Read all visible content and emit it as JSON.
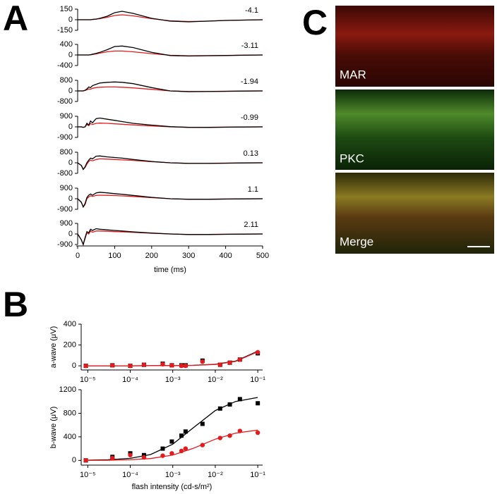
{
  "panel_labels": [
    "A",
    "B",
    "C"
  ],
  "images": {
    "labels": [
      "MAR",
      "PKC",
      "Merge"
    ]
  },
  "chart_data": [
    {
      "type": "line",
      "annotation": "-4.1",
      "xlim": [
        0,
        500
      ],
      "ylim": [
        -150,
        150
      ],
      "yticks": [
        -150,
        0,
        150
      ],
      "x": [
        0,
        10,
        15,
        20,
        25,
        30,
        35,
        40,
        50,
        60,
        80,
        100,
        120,
        150,
        200,
        250,
        300,
        350,
        400,
        450,
        500
      ],
      "series": [
        {
          "color": "#000000",
          "values": [
            0,
            0,
            0,
            0,
            0,
            0,
            0,
            5,
            10,
            20,
            50,
            100,
            120,
            90,
            20,
            -20,
            -30,
            -20,
            -10,
            -5,
            0
          ]
        },
        {
          "color": "#e41a1c",
          "values": [
            0,
            0,
            0,
            0,
            0,
            0,
            0,
            3,
            8,
            15,
            35,
            60,
            70,
            55,
            15,
            -15,
            -25,
            -20,
            -10,
            -5,
            0
          ]
        }
      ]
    },
    {
      "type": "line",
      "annotation": "-3.11",
      "xlim": [
        0,
        500
      ],
      "ylim": [
        -400,
        400
      ],
      "yticks": [
        -400,
        0,
        400
      ],
      "x": [
        0,
        10,
        15,
        20,
        25,
        30,
        35,
        40,
        50,
        60,
        80,
        100,
        120,
        150,
        200,
        250,
        300,
        350,
        400,
        450,
        500
      ],
      "series": [
        {
          "color": "#000000",
          "values": [
            0,
            0,
            0,
            0,
            0,
            0,
            10,
            30,
            60,
            100,
            200,
            320,
            340,
            280,
            100,
            -20,
            -40,
            -30,
            -20,
            -10,
            0
          ]
        },
        {
          "color": "#e41a1c",
          "values": [
            0,
            0,
            0,
            0,
            0,
            0,
            5,
            20,
            40,
            70,
            120,
            150,
            150,
            120,
            50,
            -10,
            -30,
            -25,
            -15,
            -5,
            0
          ]
        }
      ]
    },
    {
      "type": "line",
      "annotation": "-1.94",
      "xlim": [
        0,
        500
      ],
      "ylim": [
        -800,
        800
      ],
      "yticks": [
        -800,
        0,
        800
      ],
      "x": [
        0,
        10,
        15,
        20,
        25,
        30,
        35,
        40,
        50,
        60,
        80,
        100,
        120,
        150,
        200,
        250,
        300,
        350,
        400,
        450,
        500
      ],
      "series": [
        {
          "color": "#000000",
          "values": [
            0,
            0,
            0,
            50,
            150,
            300,
            250,
            400,
            500,
            600,
            650,
            680,
            650,
            550,
            250,
            0,
            -60,
            -50,
            -30,
            -10,
            0
          ]
        },
        {
          "color": "#e41a1c",
          "values": [
            0,
            0,
            0,
            30,
            80,
            150,
            130,
            200,
            250,
            280,
            300,
            300,
            280,
            230,
            120,
            0,
            -40,
            -40,
            -20,
            -10,
            0
          ]
        }
      ]
    },
    {
      "type": "line",
      "annotation": "-0.99",
      "xlim": [
        0,
        500
      ],
      "ylim": [
        -900,
        900
      ],
      "yticks": [
        -900,
        0,
        900
      ],
      "x": [
        0,
        10,
        15,
        20,
        25,
        30,
        35,
        40,
        50,
        60,
        80,
        100,
        120,
        150,
        200,
        250,
        300,
        350,
        400,
        450,
        500
      ],
      "series": [
        {
          "color": "#000000",
          "values": [
            0,
            0,
            -50,
            0,
            300,
            150,
            500,
            350,
            700,
            750,
            650,
            550,
            450,
            300,
            150,
            20,
            -40,
            -50,
            -30,
            -10,
            0
          ]
        },
        {
          "color": "#e41a1c",
          "values": [
            0,
            0,
            -30,
            0,
            200,
            100,
            280,
            200,
            300,
            320,
            300,
            260,
            220,
            160,
            80,
            0,
            -40,
            -40,
            -20,
            -10,
            0
          ]
        }
      ]
    },
    {
      "type": "line",
      "annotation": "0.13",
      "xlim": [
        0,
        500
      ],
      "ylim": [
        -800,
        800
      ],
      "yticks": [
        -800,
        0,
        800
      ],
      "x": [
        0,
        10,
        15,
        20,
        25,
        30,
        35,
        40,
        50,
        60,
        80,
        100,
        120,
        150,
        200,
        250,
        300,
        350,
        400,
        450,
        500
      ],
      "series": [
        {
          "color": "#000000",
          "values": [
            0,
            -200,
            -500,
            -300,
            0,
            200,
            350,
            300,
            500,
            520,
            450,
            400,
            350,
            250,
            100,
            0,
            -50,
            -50,
            -30,
            -10,
            0
          ]
        },
        {
          "color": "#e41a1c",
          "values": [
            0,
            -200,
            -500,
            -350,
            -100,
            100,
            200,
            150,
            250,
            300,
            280,
            250,
            220,
            180,
            80,
            0,
            -40,
            -40,
            -20,
            -10,
            0
          ]
        }
      ]
    },
    {
      "type": "line",
      "annotation": "1.1",
      "xlim": [
        0,
        500
      ],
      "ylim": [
        -900,
        900
      ],
      "yticks": [
        -900,
        0,
        900
      ],
      "x": [
        0,
        10,
        15,
        20,
        25,
        30,
        35,
        40,
        50,
        60,
        80,
        100,
        120,
        150,
        200,
        250,
        300,
        350,
        400,
        450,
        500
      ],
      "series": [
        {
          "color": "#000000",
          "values": [
            0,
            -300,
            -700,
            -400,
            100,
            300,
            400,
            300,
            500,
            550,
            500,
            430,
            380,
            280,
            120,
            0,
            -50,
            -50,
            -30,
            -10,
            0
          ]
        },
        {
          "color": "#e41a1c",
          "values": [
            0,
            -300,
            -700,
            -500,
            0,
            150,
            250,
            200,
            280,
            300,
            290,
            270,
            240,
            190,
            90,
            0,
            -40,
            -40,
            -20,
            -10,
            0
          ]
        }
      ]
    },
    {
      "type": "line",
      "annotation": "2.11",
      "xlim": [
        0,
        500
      ],
      "ylim": [
        -900,
        900
      ],
      "yticks": [
        -900,
        0,
        900
      ],
      "xticks": [
        0,
        100,
        200,
        300,
        400,
        500
      ],
      "xlabel": "time (ms)",
      "x": [
        0,
        10,
        15,
        20,
        25,
        30,
        35,
        40,
        50,
        60,
        80,
        100,
        120,
        150,
        200,
        250,
        300,
        350,
        400,
        450,
        500
      ],
      "series": [
        {
          "color": "#000000",
          "values": [
            0,
            -500,
            -900,
            -300,
            200,
            100,
            400,
            300,
            450,
            400,
            350,
            300,
            250,
            180,
            80,
            0,
            -50,
            -50,
            -30,
            -10,
            0
          ]
        },
        {
          "color": "#e41a1c",
          "values": [
            0,
            -500,
            -900,
            -400,
            100,
            0,
            250,
            150,
            250,
            250,
            230,
            200,
            180,
            140,
            60,
            0,
            -40,
            -40,
            -20,
            -10,
            0
          ]
        }
      ]
    },
    {
      "type": "scatter",
      "ylabel": "a-wave (μV)",
      "xlog": true,
      "xlim": [
        7e-06,
        0.13
      ],
      "ylim": [
        -40,
        400
      ],
      "yticks": [
        0,
        200,
        400
      ],
      "xticks": [
        {
          "value": 1e-05,
          "label": "10⁻⁵"
        },
        {
          "value": 0.0001,
          "label": "10⁻⁴"
        },
        {
          "value": 0.001,
          "label": "10⁻³"
        },
        {
          "value": 0.01,
          "label": "10⁻²"
        },
        {
          "value": 0.1,
          "label": "10⁻¹"
        }
      ],
      "series": [
        {
          "color": "#000000",
          "marker": "square",
          "x": [
            9e-06,
            3.8e-05,
            0.0001,
            0.00021,
            0.00058,
            0.00095,
            0.0016,
            0.002,
            0.005,
            0.013,
            0.022,
            0.038,
            0.1
          ],
          "values": [
            0,
            5,
            0,
            10,
            20,
            5,
            5,
            5,
            50,
            10,
            30,
            60,
            120
          ]
        },
        {
          "color": "#e41a1c",
          "marker": "circle",
          "x": [
            9e-06,
            3.8e-05,
            0.0001,
            0.00021,
            0.00058,
            0.00095,
            0.0016,
            0.002,
            0.005,
            0.013,
            0.022,
            0.038,
            0.1
          ],
          "values": [
            0,
            5,
            0,
            10,
            15,
            5,
            0,
            0,
            40,
            10,
            30,
            60,
            130
          ]
        }
      ],
      "fits": [
        {
          "color": "#000000",
          "x": [
            8e-06,
            1e-05,
            3e-05,
            0.0001,
            0.0003,
            0.001,
            0.003,
            0.01,
            0.03,
            0.1
          ],
          "values": [
            0,
            0,
            0,
            0,
            1,
            2,
            5,
            15,
            45,
            140
          ]
        },
        {
          "color": "#e41a1c",
          "x": [
            8e-06,
            1e-05,
            3e-05,
            0.0001,
            0.0003,
            0.001,
            0.003,
            0.01,
            0.03,
            0.1
          ],
          "values": [
            0,
            0,
            0,
            0,
            1,
            2,
            4,
            13,
            42,
            135
          ]
        }
      ]
    },
    {
      "type": "scatter",
      "ylabel": "b-wave (μV)",
      "xlabel": "flash intensity (cd-s/m²)",
      "xlog": true,
      "xlim": [
        7e-06,
        0.13
      ],
      "ylim": [
        -80,
        1200
      ],
      "yticks": [
        0,
        400,
        800,
        1200
      ],
      "xticks": [
        {
          "value": 1e-05,
          "label": "10⁻⁵"
        },
        {
          "value": 0.0001,
          "label": "10⁻⁴"
        },
        {
          "value": 0.001,
          "label": "10⁻³"
        },
        {
          "value": 0.01,
          "label": "10⁻²"
        },
        {
          "value": 0.1,
          "label": "10⁻¹"
        }
      ],
      "series": [
        {
          "color": "#000000",
          "marker": "square",
          "x": [
            9e-06,
            3.8e-05,
            0.0001,
            0.00021,
            0.00058,
            0.00095,
            0.0016,
            0.002,
            0.005,
            0.013,
            0.022,
            0.038,
            0.1
          ],
          "values": [
            0,
            60,
            120,
            90,
            200,
            320,
            420,
            490,
            620,
            880,
            950,
            1040,
            970
          ]
        },
        {
          "color": "#e41a1c",
          "marker": "circle",
          "x": [
            9e-06,
            3.8e-05,
            0.0001,
            0.00021,
            0.00058,
            0.00095,
            0.0016,
            0.002,
            0.005,
            0.013,
            0.022,
            0.038,
            0.1
          ],
          "values": [
            0,
            40,
            90,
            50,
            80,
            120,
            160,
            200,
            260,
            380,
            420,
            500,
            470
          ]
        }
      ],
      "fits": [
        {
          "color": "#000000",
          "x": [
            8e-06,
            1e-05,
            3e-05,
            0.0001,
            0.0003,
            0.001,
            0.003,
            0.01,
            0.03,
            0.1
          ],
          "values": [
            2,
            4,
            11,
            35,
            100,
            275,
            550,
            846,
            1000,
            1068
          ]
        },
        {
          "color": "#e41a1c",
          "x": [
            8e-06,
            1e-05,
            3e-05,
            0.0001,
            0.0003,
            0.001,
            0.003,
            0.01,
            0.03,
            0.1
          ],
          "values": [
            1,
            1,
            3,
            11,
            31,
            90,
            203,
            360,
            463,
            514
          ]
        }
      ]
    }
  ]
}
